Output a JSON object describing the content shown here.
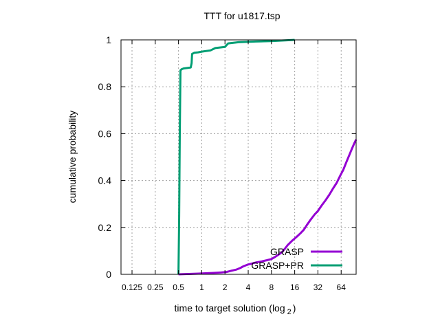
{
  "chart_data": {
    "type": "line",
    "title": "TTT for u1817.tsp",
    "xlabel": "time to target solution (log",
    "xlabel_subscript": "2",
    "xlabel_suffix": ")",
    "ylabel": "cumulative probability",
    "x_scale": "log2",
    "xlim": [
      0.09,
      100
    ],
    "ylim": [
      0,
      1
    ],
    "grid": true,
    "legend_placement": "bottom-right",
    "x_ticks": [
      {
        "value": 0.125,
        "label": "0.125"
      },
      {
        "value": 0.25,
        "label": "0.25"
      },
      {
        "value": 0.5,
        "label": "0.5"
      },
      {
        "value": 1,
        "label": "1"
      },
      {
        "value": 2,
        "label": "2"
      },
      {
        "value": 4,
        "label": "4"
      },
      {
        "value": 8,
        "label": "8"
      },
      {
        "value": 16,
        "label": "16"
      },
      {
        "value": 32,
        "label": "32"
      },
      {
        "value": 64,
        "label": "64"
      }
    ],
    "y_ticks": [
      {
        "value": 0,
        "label": "0"
      },
      {
        "value": 0.2,
        "label": "0.2"
      },
      {
        "value": 0.4,
        "label": "0.4"
      },
      {
        "value": 0.6,
        "label": "0.6"
      },
      {
        "value": 0.8,
        "label": "0.8"
      },
      {
        "value": 1,
        "label": "1"
      }
    ],
    "series": [
      {
        "name": "GRASP",
        "color": "#9400d3",
        "points": [
          [
            0.5,
            0.0
          ],
          [
            0.9,
            0.003
          ],
          [
            1.4,
            0.006
          ],
          [
            1.8,
            0.008
          ],
          [
            2.1,
            0.01
          ],
          [
            2.4,
            0.015
          ],
          [
            2.8,
            0.02
          ],
          [
            3.2,
            0.028
          ],
          [
            3.5,
            0.035
          ],
          [
            4.0,
            0.042
          ],
          [
            5.0,
            0.05
          ],
          [
            6.0,
            0.055
          ],
          [
            7.0,
            0.06
          ],
          [
            8.0,
            0.065
          ],
          [
            9.0,
            0.075
          ],
          [
            10.0,
            0.085
          ],
          [
            11.0,
            0.095
          ],
          [
            12.0,
            0.11
          ],
          [
            13.0,
            0.125
          ],
          [
            15.0,
            0.145
          ],
          [
            17.0,
            0.16
          ],
          [
            19.0,
            0.175
          ],
          [
            21.0,
            0.19
          ],
          [
            23.0,
            0.21
          ],
          [
            26.0,
            0.235
          ],
          [
            29.0,
            0.255
          ],
          [
            32.0,
            0.27
          ],
          [
            36.0,
            0.295
          ],
          [
            40.0,
            0.315
          ],
          [
            45.0,
            0.34
          ],
          [
            50.0,
            0.365
          ],
          [
            56.0,
            0.39
          ],
          [
            62.0,
            0.42
          ],
          [
            68.0,
            0.445
          ],
          [
            75.0,
            0.48
          ],
          [
            82.0,
            0.51
          ],
          [
            88.0,
            0.535
          ],
          [
            95.0,
            0.56
          ],
          [
            100.0,
            0.575
          ]
        ]
      },
      {
        "name": "GRASP+PR",
        "color": "#009e73",
        "points": [
          [
            0.5,
            0.0
          ],
          [
            0.51,
            0.25
          ],
          [
            0.52,
            0.6
          ],
          [
            0.53,
            0.87
          ],
          [
            0.55,
            0.875
          ],
          [
            0.58,
            0.878
          ],
          [
            0.65,
            0.88
          ],
          [
            0.72,
            0.882
          ],
          [
            0.74,
            0.9
          ],
          [
            0.75,
            0.94
          ],
          [
            0.8,
            0.945
          ],
          [
            0.9,
            0.947
          ],
          [
            1.0,
            0.95
          ],
          [
            1.3,
            0.955
          ],
          [
            1.5,
            0.965
          ],
          [
            2.0,
            0.97
          ],
          [
            2.2,
            0.985
          ],
          [
            3.0,
            0.99
          ],
          [
            5.0,
            0.993
          ],
          [
            8.0,
            0.995
          ],
          [
            12.0,
            0.998
          ],
          [
            16.0,
            1.0
          ]
        ]
      }
    ]
  }
}
